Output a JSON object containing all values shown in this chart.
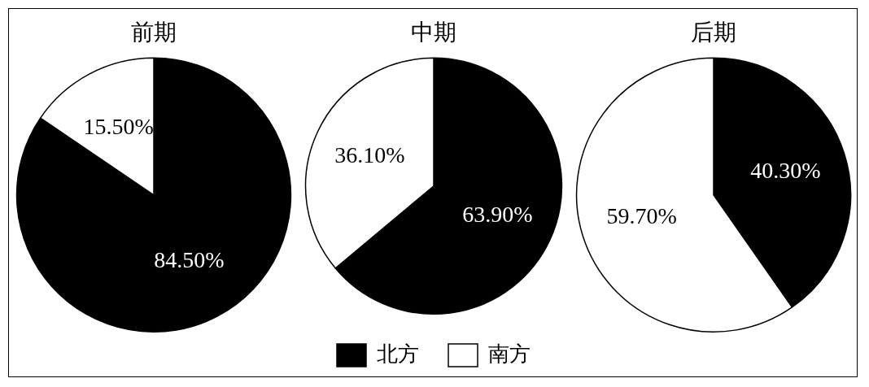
{
  "chart_data": [
    {
      "type": "pie",
      "title": "前期",
      "categories": [
        null,
        null
      ],
      "values": [
        84.5,
        15.5
      ],
      "colors": [
        "#000000",
        "#ffffff"
      ],
      "value_labels": [
        "84.50%",
        "15.50%"
      ]
    },
    {
      "type": "pie",
      "title": "中期",
      "categories": [
        "北方",
        "南方"
      ],
      "values": [
        63.9,
        36.1
      ],
      "colors": [
        "#000000",
        "#ffffff"
      ],
      "value_labels": [
        "63.90%",
        "36.10%"
      ],
      "legend": "bottom"
    },
    {
      "type": "pie",
      "title": "后期",
      "categories": [
        null,
        null
      ],
      "values": [
        40.3,
        59.7
      ],
      "colors": [
        "#000000",
        "#ffffff"
      ],
      "value_labels": [
        "40.30%",
        "59.70%"
      ]
    }
  ]
}
